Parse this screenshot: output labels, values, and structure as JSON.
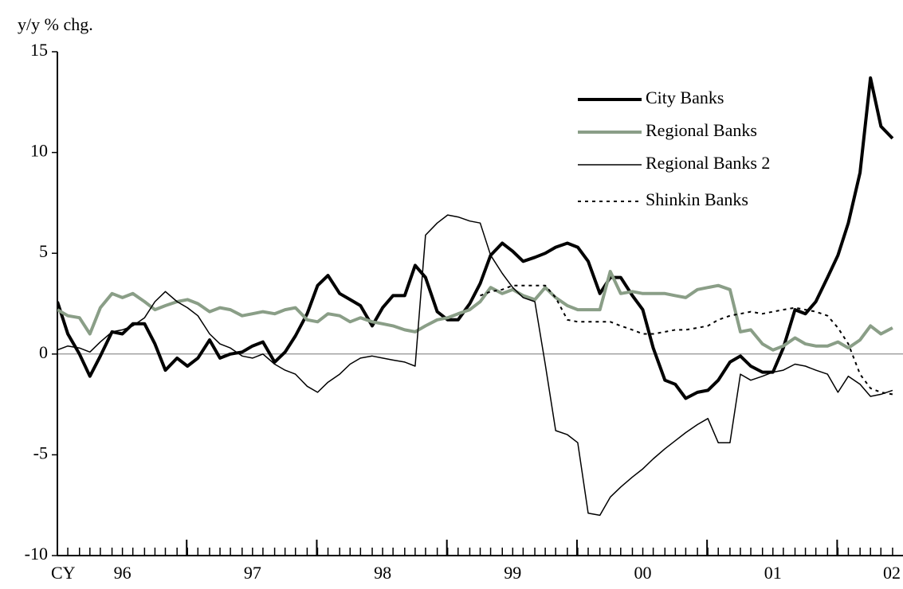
{
  "chart_data": {
    "type": "line",
    "y_label": "y/y % chg.",
    "x_label": "CY",
    "x": [
      1996.0,
      1996.08,
      1996.17,
      1996.25,
      1996.33,
      1996.42,
      1996.5,
      1996.58,
      1996.67,
      1996.75,
      1996.83,
      1996.92,
      1997.0,
      1997.08,
      1997.17,
      1997.25,
      1997.33,
      1997.42,
      1997.5,
      1997.58,
      1997.67,
      1997.75,
      1997.83,
      1997.92,
      1998.0,
      1998.08,
      1998.17,
      1998.25,
      1998.33,
      1998.42,
      1998.5,
      1998.58,
      1998.67,
      1998.75,
      1998.83,
      1998.92,
      1999.0,
      1999.08,
      1999.17,
      1999.25,
      1999.33,
      1999.42,
      1999.5,
      1999.58,
      1999.67,
      1999.75,
      1999.83,
      1999.92,
      2000.0,
      2000.08,
      2000.17,
      2000.25,
      2000.33,
      2000.42,
      2000.5,
      2000.58,
      2000.67,
      2000.75,
      2000.83,
      2000.92,
      2001.0,
      2001.08,
      2001.17,
      2001.25,
      2001.33,
      2001.42,
      2001.5,
      2001.58,
      2001.67,
      2001.75,
      2001.83,
      2001.92,
      2002.0,
      2002.08,
      2002.17,
      2002.25,
      2002.33,
      2002.42
    ],
    "xlim": [
      1996.0,
      2002.5
    ],
    "xticks": [
      {
        "value": 1996.5,
        "label": "96"
      },
      {
        "value": 1997.5,
        "label": "97"
      },
      {
        "value": 1998.5,
        "label": "98"
      },
      {
        "value": 1999.5,
        "label": "99"
      },
      {
        "value": 2000.5,
        "label": "00"
      },
      {
        "value": 2001.5,
        "label": "01"
      },
      {
        "value": 2002.5,
        "label": "02"
      }
    ],
    "year_boundaries": [
      1997,
      1998,
      1999,
      2000,
      2001,
      2002
    ],
    "ylim": [
      -10,
      15
    ],
    "yticks": [
      -10,
      -5,
      0,
      5,
      10,
      15
    ],
    "zero_line": true,
    "legend": "upper right",
    "series": [
      {
        "name": "City Banks",
        "color": "#000000",
        "width": 4,
        "dash": "solid",
        "values": [
          2.6,
          1.0,
          0,
          -1.1,
          -0.1,
          1.1,
          1.0,
          1.5,
          1.5,
          0.5,
          -0.8,
          -0.2,
          -0.6,
          -0.2,
          0.7,
          -0.2,
          0,
          0.1,
          0.4,
          0.6,
          -0.4,
          0.1,
          0.9,
          2.0,
          3.4,
          3.9,
          3.0,
          2.7,
          2.4,
          1.4,
          2.3,
          2.9,
          2.9,
          4.4,
          3.8,
          2.1,
          1.7,
          1.7,
          2.5,
          3.5,
          4.9,
          5.5,
          5.1,
          4.6,
          4.8,
          5.0,
          5.3,
          5.5,
          5.3,
          4.6,
          3.0,
          3.8,
          3.8,
          2.9,
          2.2,
          0.3,
          -1.3,
          -1.5,
          -2.2,
          -1.9,
          -1.8,
          -1.3,
          -0.4,
          -0.1,
          -0.6,
          -0.9,
          -0.9,
          0.3,
          2.2,
          2.0,
          2.6,
          3.8,
          4.9,
          6.5,
          9.0,
          13.7,
          11.3,
          10.7
        ]
      },
      {
        "name": "Regional Banks",
        "color": "#8a9e87",
        "width": 4,
        "dash": "solid",
        "values": [
          2.2,
          1.9,
          1.8,
          1.0,
          2.3,
          3.0,
          2.8,
          3.0,
          2.6,
          2.2,
          2.4,
          2.6,
          2.7,
          2.5,
          2.1,
          2.3,
          2.2,
          1.9,
          2.0,
          2.1,
          2.0,
          2.2,
          2.3,
          1.7,
          1.6,
          2.0,
          1.9,
          1.6,
          1.8,
          1.6,
          1.5,
          1.4,
          1.2,
          1.1,
          1.4,
          1.7,
          1.8,
          2.0,
          2.2,
          2.6,
          3.3,
          3.0,
          3.2,
          2.9,
          2.7,
          3.3,
          2.8,
          2.4,
          2.2,
          2.2,
          2.2,
          4.1,
          3.0,
          3.1,
          3.0,
          3.0,
          3.0,
          2.9,
          2.8,
          3.2,
          3.3,
          3.4,
          3.2,
          1.1,
          1.2,
          0.5,
          0.2,
          0.4,
          0.8,
          0.5,
          0.4,
          0.4,
          0.6,
          0.3,
          0.7,
          1.4,
          1.0,
          1.3
        ]
      },
      {
        "name": "Regional Banks 2",
        "color": "#000000",
        "width": 1.5,
        "dash": "solid",
        "values": [
          0.2,
          0.4,
          0.3,
          0.1,
          0.6,
          1.1,
          1.2,
          1.4,
          1.8,
          2.6,
          3.1,
          2.6,
          2.3,
          1.9,
          1.0,
          0.5,
          0.3,
          -0.1,
          -0.2,
          0,
          -0.5,
          -0.8,
          -1.0,
          -1.6,
          -1.9,
          -1.4,
          -1.0,
          -0.5,
          -0.2,
          -0.1,
          -0.2,
          -0.3,
          -0.4,
          -0.6,
          5.9,
          6.5,
          6.9,
          6.8,
          6.6,
          6.5,
          4.9,
          4.0,
          3.3,
          2.8,
          2.6,
          -0.5,
          -3.8,
          -4.0,
          -4.4,
          -7.9,
          -8.0,
          -7.1,
          -6.6,
          -6.1,
          -5.7,
          -5.2,
          -4.7,
          -4.3,
          -3.9,
          -3.5,
          -3.2,
          -4.4,
          -4.4,
          -1.0,
          -1.3,
          -1.1,
          -0.9,
          -0.8,
          -0.5,
          -0.6,
          -0.8,
          -1.0,
          -1.9,
          -1.1,
          -1.5,
          -2.1,
          -2.0,
          -1.8
        ]
      },
      {
        "name": "Shinkin Banks",
        "color": "#000000",
        "width": 2,
        "dash": "dotted",
        "values": [
          null,
          null,
          null,
          null,
          null,
          null,
          null,
          null,
          null,
          null,
          null,
          null,
          null,
          null,
          null,
          null,
          null,
          null,
          null,
          null,
          null,
          null,
          null,
          null,
          null,
          null,
          null,
          null,
          null,
          null,
          null,
          null,
          null,
          null,
          null,
          null,
          null,
          null,
          null,
          2.9,
          3.1,
          3.2,
          3.4,
          3.4,
          3.4,
          3.4,
          2.8,
          1.7,
          1.6,
          1.6,
          1.6,
          1.6,
          1.4,
          1.2,
          1.0,
          1.0,
          1.1,
          1.2,
          1.2,
          1.3,
          1.4,
          1.7,
          1.9,
          2.0,
          2.1,
          2.0,
          2.1,
          2.2,
          2.3,
          2.2,
          2.1,
          1.9,
          1.3,
          0.5,
          -1.0,
          -1.7,
          -1.9,
          -2.0
        ]
      }
    ]
  }
}
